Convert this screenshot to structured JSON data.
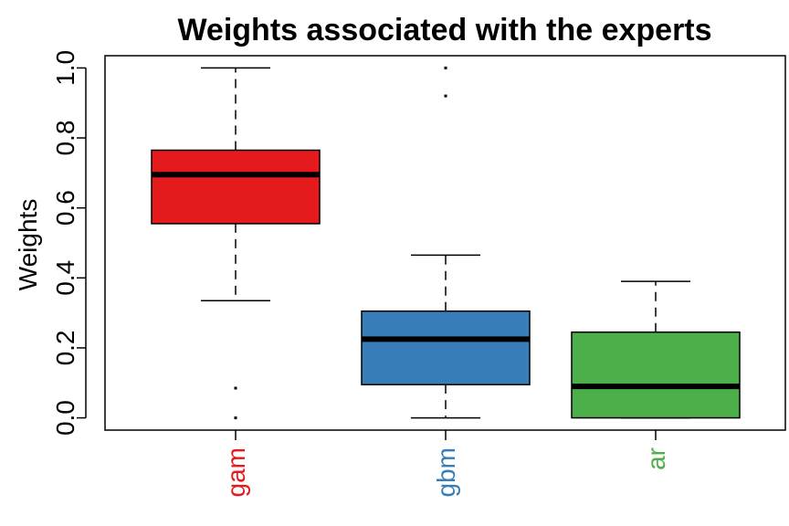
{
  "chart_data": {
    "type": "box",
    "title": "Weights associated with the experts",
    "xlabel": "",
    "ylabel": "Weights",
    "ylim": [
      -0.035,
      1.035
    ],
    "yticks": [
      0.0,
      0.2,
      0.4,
      0.6,
      0.8,
      1.0
    ],
    "ytick_labels": [
      "0.0",
      "0.2",
      "0.4",
      "0.6",
      "0.8",
      "1.0"
    ],
    "grid": false,
    "series": [
      {
        "name": "gam",
        "color": "#E41A1C",
        "whisker_low": 0.335,
        "q1": 0.555,
        "median": 0.695,
        "q3": 0.765,
        "whisker_high": 1.0,
        "outliers": [
          0.0,
          0.085
        ]
      },
      {
        "name": "gbm",
        "color": "#377EB8",
        "whisker_low": 0.0,
        "q1": 0.095,
        "median": 0.225,
        "q3": 0.305,
        "whisker_high": 0.465,
        "outliers": [
          0.92,
          1.0
        ]
      },
      {
        "name": "ar",
        "color": "#4DAF4A",
        "whisker_low": 0.0,
        "q1": 0.0,
        "median": 0.09,
        "q3": 0.245,
        "whisker_high": 0.39,
        "outliers": []
      }
    ]
  }
}
